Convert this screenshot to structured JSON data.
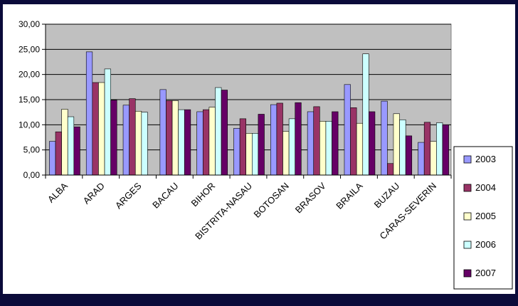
{
  "chart_data": {
    "type": "bar",
    "title": "",
    "xlabel": "",
    "ylabel": "",
    "ylim": [
      0,
      30
    ],
    "yticks": [
      "0,00",
      "5,00",
      "10,00",
      "15,00",
      "20,00",
      "25,00",
      "30,00"
    ],
    "grid": true,
    "legend_position": "right-bottom",
    "categories": [
      "ALBA",
      "ARAD",
      "ARGES",
      "BACAU",
      "BIHOR",
      "BISTRITA-NASAUD",
      "BOTOSANI",
      "BRASOV",
      "BRAILA",
      "BUZAU",
      "CARAS-SEVERIN"
    ],
    "category_labels": [
      "ALBA",
      "ARAD",
      "ARGES",
      "BACAU",
      "BIHOR",
      "BISTRITA-NASAU",
      "BOTOSAN",
      "BRASOV",
      "BRAILA",
      "BUZAU",
      "CARAS-SEVERIN"
    ],
    "series": [
      {
        "name": "2003",
        "color": "#9999ff",
        "values": [
          6.7,
          24.5,
          13.9,
          17.0,
          12.6,
          9.3,
          14.0,
          12.6,
          18.0,
          14.7,
          6.5
        ]
      },
      {
        "name": "2004",
        "color": "#993366",
        "values": [
          8.6,
          18.4,
          15.2,
          14.8,
          13.0,
          11.2,
          14.3,
          13.6,
          13.4,
          2.3,
          10.5
        ]
      },
      {
        "name": "2005",
        "color": "#ffffcc",
        "values": [
          13.1,
          18.4,
          12.7,
          14.8,
          13.5,
          8.3,
          8.7,
          10.7,
          10.3,
          12.2,
          6.7
        ]
      },
      {
        "name": "2006",
        "color": "#ccffff",
        "values": [
          11.6,
          21.1,
          12.5,
          13.0,
          17.4,
          8.3,
          11.2,
          10.7,
          24.1,
          11.0,
          10.4
        ]
      },
      {
        "name": "2007",
        "color": "#660066",
        "values": [
          9.6,
          14.9,
          0,
          13.0,
          16.9,
          12.1,
          14.4,
          12.6,
          12.6,
          7.8,
          10.0
        ]
      }
    ]
  }
}
